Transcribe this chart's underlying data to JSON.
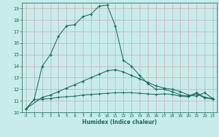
{
  "xlabel": "Humidex (Indice chaleur)",
  "xlim": [
    -0.5,
    23.5
  ],
  "ylim": [
    10,
    19.5
  ],
  "yticks": [
    10,
    11,
    12,
    13,
    14,
    15,
    16,
    17,
    18,
    19
  ],
  "xticks": [
    0,
    1,
    2,
    3,
    4,
    5,
    6,
    7,
    8,
    9,
    10,
    11,
    12,
    13,
    14,
    15,
    16,
    17,
    18,
    19,
    20,
    21,
    22,
    23
  ],
  "bg_color": "#c8eceb",
  "grid_color": "#c8a0a0",
  "line_color": "#1a6b5a",
  "line1_x": [
    0,
    1,
    2,
    3,
    4,
    5,
    6,
    7,
    8,
    9,
    10,
    11,
    12,
    13,
    14,
    15,
    16,
    17,
    18,
    19,
    20,
    21,
    22,
    23
  ],
  "line1_y": [
    10.3,
    11.1,
    14.0,
    15.0,
    16.6,
    17.5,
    17.6,
    18.3,
    18.5,
    19.2,
    19.3,
    17.5,
    14.5,
    14.0,
    13.2,
    12.5,
    12.0,
    12.0,
    11.8,
    11.5,
    11.4,
    11.7,
    11.3,
    11.2
  ],
  "line2_x": [
    0,
    2,
    3,
    4,
    5,
    6,
    7,
    8,
    9,
    10,
    11,
    12,
    13,
    14,
    15,
    16,
    17,
    18,
    19,
    20,
    21,
    22,
    23
  ],
  "line2_y": [
    10.3,
    11.3,
    11.5,
    11.8,
    12.1,
    12.4,
    12.7,
    13.0,
    13.3,
    13.6,
    13.7,
    13.5,
    13.2,
    12.9,
    12.6,
    12.3,
    12.1,
    12.0,
    11.8,
    11.5,
    11.4,
    11.7,
    11.2
  ],
  "line3_x": [
    0,
    1,
    2,
    3,
    4,
    5,
    6,
    7,
    8,
    9,
    10,
    11,
    12,
    13,
    14,
    15,
    16,
    17,
    18,
    19,
    20,
    21,
    22,
    23
  ],
  "line3_y": [
    10.3,
    11.1,
    11.15,
    11.2,
    11.3,
    11.35,
    11.4,
    11.5,
    11.55,
    11.6,
    11.65,
    11.7,
    11.7,
    11.7,
    11.65,
    11.6,
    11.55,
    11.6,
    11.55,
    11.4,
    11.35,
    11.6,
    11.25,
    11.15
  ]
}
